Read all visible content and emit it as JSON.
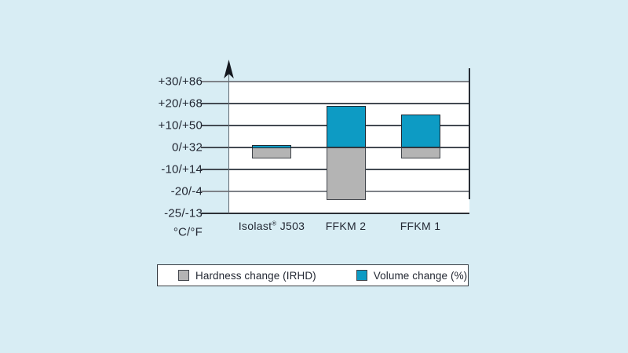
{
  "page": {
    "background_color": "#d8edf4",
    "plot_background_color": "#ffffff"
  },
  "chart_data": {
    "type": "bar",
    "title": "",
    "categories": [
      "Isolast® J503",
      "FFKM 2",
      "FFKM 1"
    ],
    "series": [
      {
        "name": "Hardness change (IRHD)",
        "color": "#b4b4b4",
        "values": [
          -5,
          -22,
          -5
        ]
      },
      {
        "name": "Volume change (%)",
        "color": "#0d9bc4",
        "values": [
          1,
          19,
          15
        ]
      }
    ],
    "y_axis": {
      "unit_label": "°C/°F",
      "ticks": [
        {
          "label": "+30/+86",
          "value": 30,
          "major": true
        },
        {
          "label": "+20/+68",
          "value": 20,
          "major": false
        },
        {
          "label": "+10/+50",
          "value": 10,
          "major": false
        },
        {
          "label": "0/+32",
          "value": 0,
          "major": false
        },
        {
          "label": "-10/+14",
          "value": -10,
          "major": false
        },
        {
          "label": "-20/-4",
          "value": -20,
          "major": true
        },
        {
          "label": "-25/-13",
          "value": -25,
          "major": false
        }
      ]
    },
    "ylim": [
      -25,
      30
    ],
    "grid": true,
    "legend": {
      "position": "bottom",
      "items": [
        {
          "label": "Hardness change (IRHD)",
          "color": "#b4b4b4"
        },
        {
          "label": "Volume change (%)",
          "color": "#0d9bc4"
        }
      ]
    }
  }
}
